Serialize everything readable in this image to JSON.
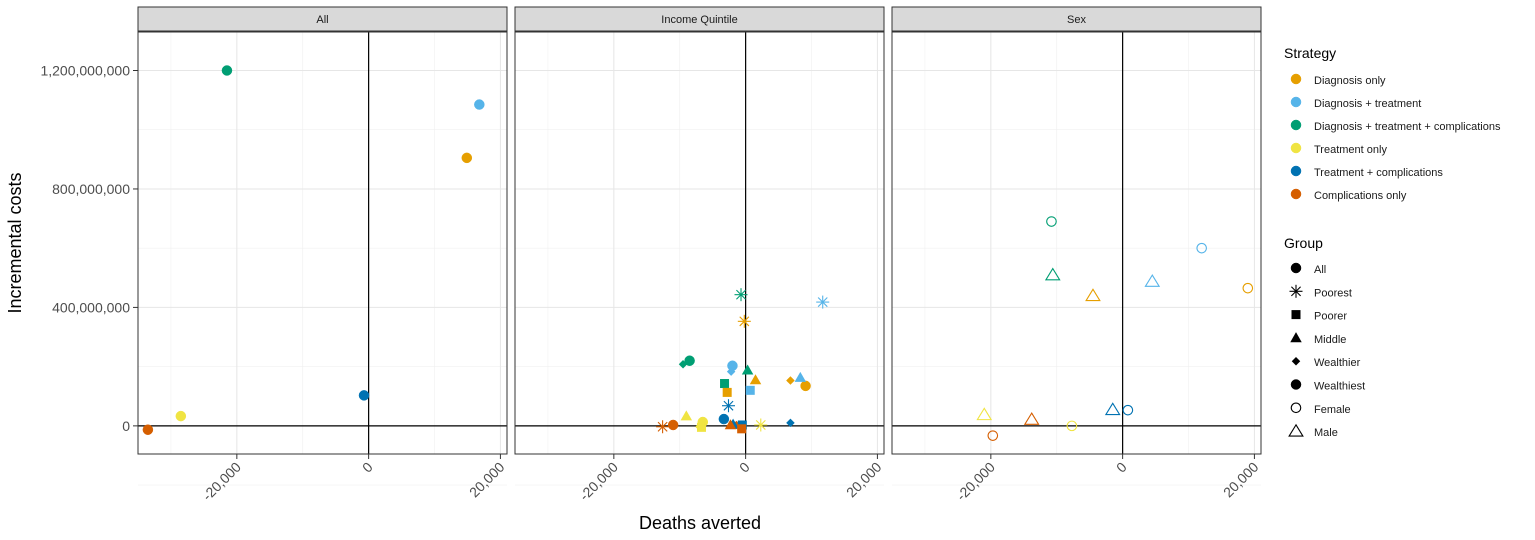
{
  "chart_data": {
    "type": "scatter",
    "xlabel": "Deaths averted",
    "ylabel": "Incremental costs",
    "xlim": [
      -35000,
      21000
    ],
    "ylim": [
      -95000000,
      1330000000
    ],
    "xticks": [
      -20000,
      0,
      20000
    ],
    "xtick_labels": [
      "-20,000",
      "0",
      "20,000"
    ],
    "yticks": [
      0,
      400000000,
      800000000,
      1200000000
    ],
    "ytick_labels": [
      "0",
      "400,000,000",
      "800,000,000",
      "1,200,000,000"
    ],
    "grid": true,
    "reference_lines": {
      "x": 0,
      "y": 0
    },
    "facets": [
      "All",
      "Income Quintile",
      "Sex"
    ],
    "strategies": [
      {
        "name": "Diagnosis only",
        "color": "#E69F00"
      },
      {
        "name": "Diagnosis + treatment",
        "color": "#56B4E9"
      },
      {
        "name": "Diagnosis + treatment + complications",
        "color": "#009E73"
      },
      {
        "name": "Treatment only",
        "color": "#F0E442"
      },
      {
        "name": "Treatment + complications",
        "color": "#0072B2"
      },
      {
        "name": "Complications only",
        "color": "#D55E00"
      }
    ],
    "groups": [
      {
        "name": "All",
        "shape": "circle"
      },
      {
        "name": "Poorest",
        "shape": "asterisk"
      },
      {
        "name": "Poorer",
        "shape": "square"
      },
      {
        "name": "Middle",
        "shape": "triangle"
      },
      {
        "name": "Wealthier",
        "shape": "diamond"
      },
      {
        "name": "Wealthiest",
        "shape": "circle"
      },
      {
        "name": "Female",
        "shape": "circle-open"
      },
      {
        "name": "Male",
        "shape": "triangle-open"
      }
    ],
    "points": [
      {
        "facet": "All",
        "strategy": "Diagnosis + treatment + complications",
        "group": "All",
        "x": -21500,
        "y": 1200000000
      },
      {
        "facet": "All",
        "strategy": "Diagnosis + treatment",
        "group": "All",
        "x": 16800,
        "y": 1085000000
      },
      {
        "facet": "All",
        "strategy": "Diagnosis only",
        "group": "All",
        "x": 14900,
        "y": 905000000
      },
      {
        "facet": "All",
        "strategy": "Treatment + complications",
        "group": "All",
        "x": -700,
        "y": 103000000
      },
      {
        "facet": "All",
        "strategy": "Treatment only",
        "group": "All",
        "x": -28500,
        "y": 33000000
      },
      {
        "facet": "All",
        "strategy": "Complications only",
        "group": "All",
        "x": -33500,
        "y": -13000000
      },
      {
        "facet": "Income Quintile",
        "strategy": "Diagnosis + treatment + complications",
        "group": "Poorest",
        "x": -700,
        "y": 443000000
      },
      {
        "facet": "Income Quintile",
        "strategy": "Diagnosis + treatment",
        "group": "Poorest",
        "x": 11700,
        "y": 418000000
      },
      {
        "facet": "Income Quintile",
        "strategy": "Diagnosis only",
        "group": "Poorest",
        "x": -200,
        "y": 353000000
      },
      {
        "facet": "Income Quintile",
        "strategy": "Treatment + complications",
        "group": "Poorest",
        "x": -2600,
        "y": 68000000
      },
      {
        "facet": "Income Quintile",
        "strategy": "Treatment only",
        "group": "Poorest",
        "x": 2300,
        "y": 3000000
      },
      {
        "facet": "Income Quintile",
        "strategy": "Complications only",
        "group": "Poorest",
        "x": -12600,
        "y": -3000000
      },
      {
        "facet": "Income Quintile",
        "strategy": "Diagnosis + treatment + complications",
        "group": "Wealthiest",
        "x": -8500,
        "y": 220000000
      },
      {
        "facet": "Income Quintile",
        "strategy": "Diagnosis + treatment",
        "group": "Wealthiest",
        "x": -2000,
        "y": 203000000
      },
      {
        "facet": "Income Quintile",
        "strategy": "Diagnosis only",
        "group": "Wealthiest",
        "x": 9100,
        "y": 135000000
      },
      {
        "facet": "Income Quintile",
        "strategy": "Treatment + complications",
        "group": "Wealthiest",
        "x": -3300,
        "y": 23000000
      },
      {
        "facet": "Income Quintile",
        "strategy": "Treatment only",
        "group": "Wealthiest",
        "x": -6500,
        "y": 13000000
      },
      {
        "facet": "Income Quintile",
        "strategy": "Complications only",
        "group": "Wealthiest",
        "x": -11000,
        "y": 3000000
      },
      {
        "facet": "Income Quintile",
        "strategy": "Diagnosis + treatment + complications",
        "group": "Wealthier",
        "x": -9500,
        "y": 208000000
      },
      {
        "facet": "Income Quintile",
        "strategy": "Diagnosis + treatment",
        "group": "Wealthier",
        "x": -2200,
        "y": 183000000
      },
      {
        "facet": "Income Quintile",
        "strategy": "Diagnosis only",
        "group": "Wealthier",
        "x": 6800,
        "y": 153000000
      },
      {
        "facet": "Income Quintile",
        "strategy": "Treatment + complications",
        "group": "Wealthier",
        "x": 6800,
        "y": 10000000
      },
      {
        "facet": "Income Quintile",
        "strategy": "Treatment only",
        "group": "Wealthier",
        "x": -7000,
        "y": -3000000
      },
      {
        "facet": "Income Quintile",
        "strategy": "Complications only",
        "group": "Wealthier",
        "x": -1400,
        "y": 3000000
      },
      {
        "facet": "Income Quintile",
        "strategy": "Diagnosis + treatment + complications",
        "group": "Middle",
        "x": 300,
        "y": 188000000
      },
      {
        "facet": "Income Quintile",
        "strategy": "Diagnosis + treatment",
        "group": "Middle",
        "x": 8300,
        "y": 163000000
      },
      {
        "facet": "Income Quintile",
        "strategy": "Diagnosis only",
        "group": "Middle",
        "x": 1500,
        "y": 155000000
      },
      {
        "facet": "Income Quintile",
        "strategy": "Treatment + complications",
        "group": "Middle",
        "x": -1900,
        "y": 5000000
      },
      {
        "facet": "Income Quintile",
        "strategy": "Treatment only",
        "group": "Middle",
        "x": -9000,
        "y": 33000000
      },
      {
        "facet": "Income Quintile",
        "strategy": "Complications only",
        "group": "Middle",
        "x": -2300,
        "y": 3000000
      },
      {
        "facet": "Income Quintile",
        "strategy": "Diagnosis + treatment + complications",
        "group": "Poorer",
        "x": -3200,
        "y": 143000000
      },
      {
        "facet": "Income Quintile",
        "strategy": "Diagnosis + treatment",
        "group": "Poorer",
        "x": 700,
        "y": 120000000
      },
      {
        "facet": "Income Quintile",
        "strategy": "Diagnosis only",
        "group": "Poorer",
        "x": -2800,
        "y": 113000000
      },
      {
        "facet": "Income Quintile",
        "strategy": "Treatment + complications",
        "group": "Poorer",
        "x": -500,
        "y": 3000000
      },
      {
        "facet": "Income Quintile",
        "strategy": "Treatment only",
        "group": "Poorer",
        "x": -6700,
        "y": -5000000
      },
      {
        "facet": "Income Quintile",
        "strategy": "Complications only",
        "group": "Poorer",
        "x": -600,
        "y": -10000000
      },
      {
        "facet": "Sex",
        "strategy": "Diagnosis + treatment + complications",
        "group": "Female",
        "x": -10800,
        "y": 690000000
      },
      {
        "facet": "Sex",
        "strategy": "Diagnosis + treatment",
        "group": "Female",
        "x": 12000,
        "y": 600000000
      },
      {
        "facet": "Sex",
        "strategy": "Diagnosis only",
        "group": "Female",
        "x": 19000,
        "y": 465000000
      },
      {
        "facet": "Sex",
        "strategy": "Treatment + complications",
        "group": "Female",
        "x": 800,
        "y": 53000000
      },
      {
        "facet": "Sex",
        "strategy": "Treatment only",
        "group": "Female",
        "x": -7700,
        "y": 0
      },
      {
        "facet": "Sex",
        "strategy": "Complications only",
        "group": "Female",
        "x": -19700,
        "y": -33000000
      },
      {
        "facet": "Sex",
        "strategy": "Diagnosis + treatment + complications",
        "group": "Male",
        "x": -10600,
        "y": 510000000
      },
      {
        "facet": "Sex",
        "strategy": "Diagnosis + treatment",
        "group": "Male",
        "x": 4500,
        "y": 488000000
      },
      {
        "facet": "Sex",
        "strategy": "Diagnosis only",
        "group": "Male",
        "x": -4500,
        "y": 440000000
      },
      {
        "facet": "Sex",
        "strategy": "Treatment + complications",
        "group": "Male",
        "x": -1500,
        "y": 55000000
      },
      {
        "facet": "Sex",
        "strategy": "Treatment only",
        "group": "Male",
        "x": -21000,
        "y": 38000000
      },
      {
        "facet": "Sex",
        "strategy": "Complications only",
        "group": "Male",
        "x": -13800,
        "y": 22000000
      }
    ]
  },
  "legend": {
    "strategy_title": "Strategy",
    "group_title": "Group"
  }
}
